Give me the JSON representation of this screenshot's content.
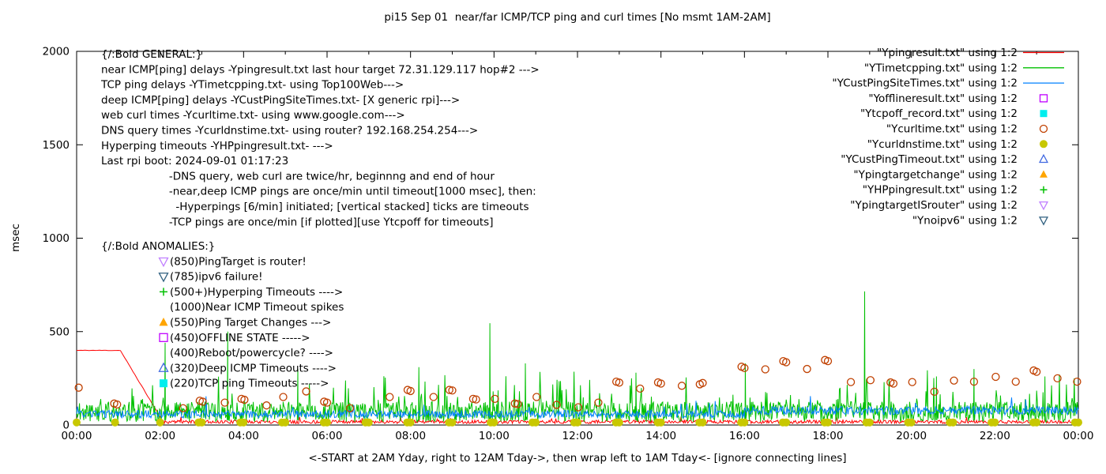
{
  "chart_data": {
    "type": "line",
    "title": "pi15 Sep 01  near/far ICMP/TCP ping and curl times [No msmt 1AM-2AM]",
    "ylabel": "msec",
    "xlabel": "<-START at 2AM Yday, right to 12AM Tday->, then wrap left to 1AM Tday<- [ignore connecting lines]",
    "xlim": [
      0,
      24
    ],
    "ylim": [
      0,
      2000
    ],
    "x_major": [
      0,
      2,
      4,
      6,
      8,
      10,
      12,
      14,
      16,
      18,
      20,
      22,
      24
    ],
    "x_labels": [
      "00:00",
      "02:00",
      "04:00",
      "06:00",
      "08:00",
      "10:00",
      "12:00",
      "14:00",
      "16:00",
      "18:00",
      "20:00",
      "22:00",
      "00:00"
    ],
    "yticks": [
      0,
      500,
      1000,
      1500,
      2000
    ],
    "grid": false,
    "legend_position": "top-right",
    "series": [
      {
        "id": "Ypingresult",
        "name": "\"Ypingresult.txt\" using 1:2",
        "color": "#ff0000",
        "marker": "line",
        "render": {
          "kind": "noisy-line",
          "seed": 11,
          "segments": [
            {
              "x0": 0,
              "x1": 1.05,
              "step": 0.05,
              "base": 398,
              "amp": 3
            },
            {
              "x0": 1.05,
              "x1": 2.08,
              "step": 0.05,
              "ramp": [
                398,
                14
              ],
              "amp": 4
            },
            {
              "x0": 2.08,
              "x1": 24,
              "step": 0.02,
              "base": 8,
              "amp": 18,
              "spike_chance": 0.02,
              "spike_amp": 30
            }
          ],
          "spikes": []
        }
      },
      {
        "id": "YTimetcpping",
        "name": "\"YTimetcpping.txt\" using 1:2",
        "color": "#00c000",
        "marker": "line",
        "render": {
          "kind": "noisy-line",
          "seed": 22,
          "segments": [
            {
              "x0": 0,
              "x1": 24,
              "step": 0.017,
              "base": 15,
              "amp": 110,
              "spike_chance": 0.08,
              "spike_amp": 180
            }
          ],
          "spikes": [
            [
              2.12,
              440
            ],
            [
              3.62,
              500
            ],
            [
              5.3,
              300
            ],
            [
              8.2,
              310
            ],
            [
              9.9,
              545
            ],
            [
              10.75,
              330
            ],
            [
              13.4,
              280
            ],
            [
              16.02,
              330
            ],
            [
              18.88,
              715
            ],
            [
              20.6,
              260
            ],
            [
              21.5,
              300
            ],
            [
              23.2,
              260
            ]
          ]
        }
      },
      {
        "id": "YCustPingSiteTimes",
        "name": "\"YCustPingSiteTimes.txt\" using 1:2",
        "color": "#0080ff",
        "marker": "line",
        "render": {
          "kind": "noisy-line",
          "seed": 33,
          "segments": [
            {
              "x0": 0,
              "x1": 16,
              "step": 0.02,
              "base": 38,
              "amp": 40,
              "spike_chance": 0.02,
              "spike_amp": 80
            },
            {
              "x0": 16,
              "x1": 24,
              "step": 0.02,
              "base": 55,
              "amp": 45,
              "spike_chance": 0.02,
              "spike_amp": 70
            }
          ],
          "spikes": []
        }
      },
      {
        "id": "Yofflineresult",
        "name": "\"Yofflineresult.txt\" using 1:2",
        "color": "#c000ff",
        "marker": "square-open",
        "render": {
          "kind": "points",
          "points": []
        }
      },
      {
        "id": "Ytcpoff_record",
        "name": "\"Ytcpoff_record.txt\" using 1:2",
        "color": "#00eeee",
        "marker": "square-filled",
        "render": {
          "kind": "points",
          "points": []
        }
      },
      {
        "id": "Ycurltime",
        "name": "\"Ycurltime.txt\" using 1:2",
        "color": "#c04000",
        "marker": "circle-open",
        "render": {
          "kind": "points",
          "points": [
            [
              0.05,
              200
            ],
            [
              0.9,
              115
            ],
            [
              0.97,
              110
            ],
            [
              2.55,
              90
            ],
            [
              2.95,
              130
            ],
            [
              3.02,
              125
            ],
            [
              3.55,
              120
            ],
            [
              3.95,
              140
            ],
            [
              4.02,
              135
            ],
            [
              4.55,
              105
            ],
            [
              4.95,
              150
            ],
            [
              5.5,
              180
            ],
            [
              5.93,
              125
            ],
            [
              6.0,
              120
            ],
            [
              6.55,
              90
            ],
            [
              7.5,
              150
            ],
            [
              7.93,
              188
            ],
            [
              8.0,
              182
            ],
            [
              8.55,
              150
            ],
            [
              8.93,
              188
            ],
            [
              9.0,
              185
            ],
            [
              9.5,
              140
            ],
            [
              9.57,
              137
            ],
            [
              10.02,
              140
            ],
            [
              10.5,
              115
            ],
            [
              10.57,
              112
            ],
            [
              11.02,
              150
            ],
            [
              11.5,
              108
            ],
            [
              12.02,
              95
            ],
            [
              12.5,
              120
            ],
            [
              12.93,
              232
            ],
            [
              13.0,
              227
            ],
            [
              13.5,
              195
            ],
            [
              13.93,
              228
            ],
            [
              14.0,
              222
            ],
            [
              14.5,
              210
            ],
            [
              14.93,
              218
            ],
            [
              15.0,
              225
            ],
            [
              15.93,
              312
            ],
            [
              16.0,
              305
            ],
            [
              16.5,
              298
            ],
            [
              16.93,
              342
            ],
            [
              17.0,
              336
            ],
            [
              17.5,
              300
            ],
            [
              17.93,
              348
            ],
            [
              18.0,
              342
            ],
            [
              18.55,
              230
            ],
            [
              19.02,
              240
            ],
            [
              19.5,
              228
            ],
            [
              19.57,
              222
            ],
            [
              20.02,
              230
            ],
            [
              20.55,
              178
            ],
            [
              21.02,
              238
            ],
            [
              21.5,
              232
            ],
            [
              22.02,
              258
            ],
            [
              22.5,
              232
            ],
            [
              22.93,
              292
            ],
            [
              23.0,
              285
            ],
            [
              23.5,
              250
            ],
            [
              23.97,
              232
            ]
          ]
        }
      },
      {
        "id": "Ycurldnstime",
        "name": "\"Ycurldnstime.txt\" using 1:2",
        "color": "#c8c800",
        "marker": "circle-filled",
        "render": {
          "kind": "hourly-points",
          "from": 0,
          "to": 24,
          "offsets": [
            0,
            0.92
          ],
          "y": 14,
          "skip": [
            1
          ]
        }
      },
      {
        "id": "YCustPingTimeout",
        "name": "\"YCustPingTimeout.txt\" using 1:2",
        "color": "#4169e1",
        "marker": "triangle-up-open",
        "render": {
          "kind": "points",
          "points": []
        }
      },
      {
        "id": "Ypingtargetchange",
        "name": "\"Ypingtargetchange\" using 1:2",
        "color": "#ffa500",
        "marker": "triangle-up-filled",
        "render": {
          "kind": "points",
          "points": []
        }
      },
      {
        "id": "YHPpingresult",
        "name": "\"YHPpingresult.txt\" using 1:2",
        "color": "#00c000",
        "marker": "plus",
        "render": {
          "kind": "points",
          "points": []
        }
      },
      {
        "id": "YpingtargetISrouter",
        "name": "\"YpingtargetISrouter\" using 1:2",
        "color": "#c080ff",
        "marker": "triangle-down-open",
        "render": {
          "kind": "points",
          "points": []
        }
      },
      {
        "id": "Ynoipv6",
        "name": "\"Ynoipv6\" using 1:2",
        "color": "#306080",
        "marker": "triangle-down-open",
        "render": {
          "kind": "points",
          "points": []
        }
      }
    ],
    "annotations": {
      "general": {
        "lines": [
          "{/:Bold GENERAL:}",
          "near ICMP[ping] delays -Ypingresult.txt last hour target 72.31.129.117 hop#2 --->",
          "TCP ping delays -YTimetcpping.txt- using Top100Web--->",
          "deep ICMP[ping] delays -YCustPingSiteTimes.txt- [X generic rpi]--->",
          "web curl times -Ycurltime.txt- using www.google.com--->",
          "DNS query times -Ycurldnstime.txt- using router? 192.168.254.254--->",
          "Hyperping timeouts -YHPpingresult.txt- --->",
          "Last rpi boot: 2024-09-01 01:17:23",
          "                    -DNS query, web curl are twice/hr, beginnng and end of hour",
          "                    -near,deep ICMP pings are once/min until timeout[1000 msec], then:",
          "                      -Hyperpings [6/min] initiated; [vertical stacked] ticks are timeouts",
          "                    -TCP pings are once/min [if plotted][use Ytcpoff for timeouts]"
        ]
      },
      "anomalies": {
        "header": "{/:Bold ANOMALIES:}",
        "items": [
          {
            "marker": "triangle-down-open",
            "color": "#c080ff",
            "text": "(850)PingTarget is router!"
          },
          {
            "marker": "triangle-down-open",
            "color": "#306080",
            "text": "(785)ipv6 failure!"
          },
          {
            "marker": "plus",
            "color": "#00c000",
            "text": "(500+)Hyperping Timeouts ---->"
          },
          {
            "marker": "",
            "color": "",
            "text": "(1000)Near ICMP Timeout spikes"
          },
          {
            "marker": "triangle-up-filled",
            "color": "#ffa500",
            "text": "(550)Ping Target Changes --->"
          },
          {
            "marker": "square-open",
            "color": "#c000ff",
            "text": "(450)OFFLINE STATE ----->"
          },
          {
            "marker": "",
            "color": "",
            "text": "(400)Reboot/powercycle? ---->"
          },
          {
            "marker": "triangle-up-open",
            "color": "#4169e1",
            "text": "(320)Deep ICMP Timeouts ---->"
          },
          {
            "marker": "square-filled",
            "color": "#00eeee",
            "text": "(220)TCP ping Timeouts ----->"
          }
        ]
      }
    }
  }
}
